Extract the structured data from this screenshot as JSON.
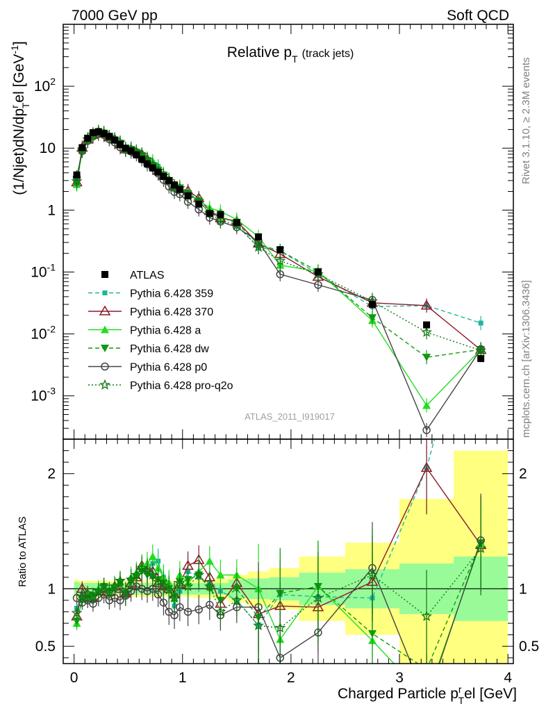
{
  "header": {
    "left": "7000 GeV pp",
    "right": "Soft QCD"
  },
  "title": {
    "main": "Relative p",
    "sub": "T",
    "suffix": "(track jets)"
  },
  "ylabel_main": {
    "part1": "(1/Njet)dN/dp",
    "sup": "r",
    "sub": "T",
    "part2": "el [GeV",
    "sup2": "-1",
    "part3": "]"
  },
  "ylabel_ratio": "Ratio to ATLAS",
  "xlabel": {
    "part1": "Charged Particle p",
    "sup": "r",
    "sub": "T",
    "part2": "el [GeV]"
  },
  "watermark": "ATLAS_2011_I919017",
  "side_top": "Rivet 3.1.10, ≥ 2.3M events",
  "side_bottom": "mcplots.cern.ch [arXiv:1306.3436]",
  "legend": [
    {
      "label": "ATLAS",
      "color": "#000000",
      "marker": "square",
      "dash": "none"
    },
    {
      "label": "Pythia 6.428 359",
      "color": "#1fb59a",
      "marker": "square-small",
      "dash": "dashed"
    },
    {
      "label": "Pythia 6.428 370",
      "color": "#8b1a2a",
      "marker": "triangle-open",
      "dash": "solid"
    },
    {
      "label": "Pythia 6.428 a",
      "color": "#22dd22",
      "marker": "triangle",
      "dash": "solid"
    },
    {
      "label": "Pythia 6.428 dw",
      "color": "#119911",
      "marker": "triangle-down",
      "dash": "dashed"
    },
    {
      "label": "Pythia 6.428 p0",
      "color": "#444444",
      "marker": "circle-open",
      "dash": "solid"
    },
    {
      "label": "Pythia 6.428 pro-q2o",
      "color": "#117711",
      "marker": "star-open",
      "dash": "dotted"
    }
  ],
  "chart_data": {
    "type": "line",
    "main_panel": {
      "yscale": "log",
      "xlim": [
        -0.1,
        4.05
      ],
      "ylim": [
        0.0002,
        1000
      ],
      "ytick_labels": [
        "10^-3",
        "10^-2",
        "10^-1",
        "1",
        "10",
        "10^2"
      ]
    },
    "ratio_panel": {
      "ylim": [
        0.35,
        2.3
      ],
      "ytick_labels": [
        "0.5",
        "1",
        "2"
      ]
    },
    "xtick_labels": [
      "0",
      "1",
      "2",
      "3",
      "4"
    ],
    "x": [
      0.025,
      0.075,
      0.125,
      0.175,
      0.225,
      0.275,
      0.325,
      0.375,
      0.425,
      0.475,
      0.525,
      0.575,
      0.625,
      0.675,
      0.725,
      0.775,
      0.825,
      0.875,
      0.925,
      0.975,
      1.05,
      1.15,
      1.25,
      1.35,
      1.5,
      1.7,
      1.9,
      2.25,
      2.75,
      3.25,
      3.75
    ],
    "data": {
      "name": "ATLAS",
      "values": [
        3.7,
        10.2,
        14.5,
        17.8,
        18.5,
        17.2,
        15.5,
        13.5,
        11.5,
        10.0,
        9.0,
        7.8,
        6.6,
        5.6,
        4.8,
        4.1,
        3.5,
        3.0,
        2.55,
        2.15,
        1.7,
        1.25,
        0.88,
        0.85,
        0.63,
        0.37,
        0.23,
        0.1,
        0.03,
        0.014,
        0.004
      ],
      "band_stat": [
        0.06,
        0.05,
        0.05,
        0.05,
        0.05,
        0.05,
        0.05,
        0.05,
        0.05,
        0.05,
        0.05,
        0.05,
        0.05,
        0.05,
        0.05,
        0.05,
        0.05,
        0.05,
        0.05,
        0.05,
        0.05,
        0.05,
        0.05,
        0.05,
        0.08,
        0.09,
        0.1,
        0.14,
        0.17,
        0.22,
        0.28
      ],
      "band_total": [
        0.08,
        0.07,
        0.07,
        0.07,
        0.07,
        0.07,
        0.07,
        0.07,
        0.07,
        0.07,
        0.07,
        0.07,
        0.07,
        0.07,
        0.07,
        0.07,
        0.07,
        0.07,
        0.07,
        0.07,
        0.07,
        0.08,
        0.08,
        0.09,
        0.12,
        0.15,
        0.18,
        0.28,
        0.4,
        0.78,
        1.2
      ]
    },
    "series": [
      {
        "name": "Pythia 6.428 359",
        "ratio": [
          0.83,
          0.95,
          0.93,
          0.9,
          0.97,
          1.02,
          0.96,
          1.0,
          1.05,
          0.94,
          1.08,
          1.12,
          1.18,
          1.15,
          1.22,
          1.24,
          1.1,
          1.03,
          0.85,
          0.98,
          1.15,
          1.1,
          1.05,
          0.98,
          0.9,
          0.68,
          0.95,
          0.93,
          0.92,
          2.05,
          3.75
        ]
      },
      {
        "name": "Pythia 6.428 370",
        "ratio": [
          0.76,
          1.0,
          0.95,
          0.92,
          0.98,
          1.0,
          0.97,
          1.02,
          1.0,
          0.96,
          1.05,
          1.1,
          1.2,
          1.18,
          1.15,
          1.05,
          1.02,
          1.0,
          0.95,
          1.04,
          1.2,
          1.25,
          1.1,
          0.87,
          1.05,
          0.78,
          0.85,
          0.84,
          1.06,
          2.05,
          1.38
        ]
      },
      {
        "name": "Pythia 6.428 a",
        "ratio": [
          0.7,
          0.91,
          0.95,
          0.93,
          1.0,
          1.02,
          0.98,
          1.03,
          1.06,
          0.97,
          1.1,
          1.14,
          1.2,
          1.22,
          1.28,
          1.18,
          1.1,
          1.05,
          0.92,
          1.12,
          1.05,
          1.15,
          1.24,
          1.12,
          1.12,
          1.0,
          0.56,
          1.02,
          0.55,
          0.05,
          1.4
        ]
      },
      {
        "name": "Pythia 6.428 dw",
        "ratio": [
          0.72,
          0.9,
          0.9,
          0.94,
          0.97,
          1.02,
          0.98,
          1.0,
          1.05,
          0.95,
          1.06,
          1.1,
          1.15,
          1.12,
          1.1,
          1.08,
          1.05,
          1.0,
          0.93,
          1.06,
          1.08,
          1.12,
          1.0,
          0.9,
          1.0,
          0.75,
          0.96,
          1.02,
          0.61,
          0.3,
          1.4
        ]
      },
      {
        "name": "Pythia 6.428 p0",
        "ratio": [
          0.92,
          0.88,
          0.9,
          0.87,
          0.92,
          0.95,
          0.9,
          0.92,
          0.9,
          0.94,
          0.98,
          1.02,
          1.0,
          0.98,
          1.0,
          0.95,
          0.88,
          0.8,
          0.77,
          0.84,
          0.8,
          0.82,
          0.86,
          0.77,
          0.84,
          0.84,
          0.4,
          0.62,
          1.18,
          0.02,
          1.42
        ]
      },
      {
        "name": "Pythia 6.428 pro-q2o",
        "ratio": [
          0.79,
          0.93,
          0.96,
          0.93,
          0.98,
          1.02,
          0.97,
          1.02,
          1.07,
          0.97,
          1.08,
          1.12,
          1.18,
          1.16,
          1.12,
          1.06,
          1.03,
          0.99,
          0.92,
          1.05,
          1.02,
          1.12,
          1.02,
          0.8,
          0.9,
          0.68,
          0.66,
          0.92,
          1.12,
          0.76,
          1.35
        ]
      }
    ]
  }
}
